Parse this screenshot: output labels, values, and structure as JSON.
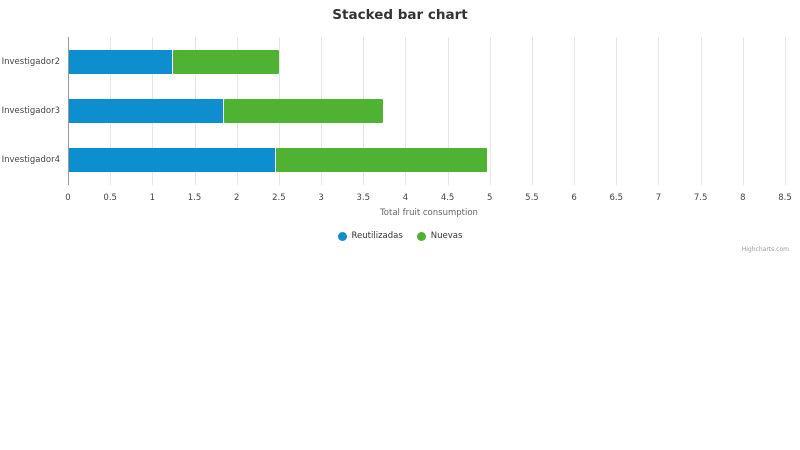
{
  "chart_data": {
    "type": "bar",
    "orientation": "horizontal",
    "stacked": true,
    "title": "Stacked bar chart",
    "xlabel": "Total fruit consumption",
    "ylabel": "",
    "categories": [
      "Investigador2",
      "Investigador3",
      "Investigador4"
    ],
    "series": [
      {
        "name": "Reutilizadas",
        "color": "#0d8ecf",
        "values": [
          1.24,
          1.85,
          2.47
        ]
      },
      {
        "name": "Nuevas",
        "color": "#4fb233",
        "values": [
          1.26,
          1.88,
          2.5
        ]
      }
    ],
    "xlim": [
      0,
      8.5
    ],
    "xticks": [
      "0",
      "0.5",
      "1",
      "1.5",
      "2",
      "2.5",
      "3",
      "3.5",
      "4",
      "4.5",
      "5",
      "5.5",
      "6",
      "6.5",
      "7",
      "7.5",
      "8",
      "8.5"
    ],
    "grid": true,
    "legend_position": "bottom-center"
  },
  "title": "Stacked bar chart",
  "xaxis": {
    "label": "Total fruit consumption",
    "ticks": [
      "0",
      "0.5",
      "1",
      "1.5",
      "2",
      "2.5",
      "3",
      "3.5",
      "4",
      "4.5",
      "5",
      "5.5",
      "6",
      "6.5",
      "7",
      "7.5",
      "8",
      "8.5"
    ]
  },
  "categories": [
    "Investigador2",
    "Investigador3",
    "Investigador4"
  ],
  "legend": [
    {
      "label": "Reutilizadas",
      "color": "#0d8ecf",
      "icon": "circle-marker-icon"
    },
    {
      "label": "Nuevas",
      "color": "#4fb233",
      "icon": "circle-marker-icon"
    }
  ],
  "credits": "Highcharts.com"
}
